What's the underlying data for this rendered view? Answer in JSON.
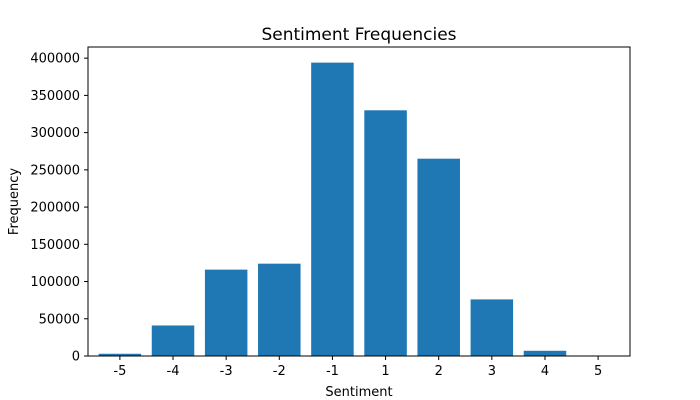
{
  "chart_data": {
    "type": "bar",
    "title": "Sentiment Frequencies",
    "xlabel": "Sentiment",
    "ylabel": "Frequency",
    "categories": [
      "-5",
      "-4",
      "-3",
      "-2",
      "-1",
      "1",
      "2",
      "3",
      "4",
      "5"
    ],
    "values": [
      3000,
      41000,
      116000,
      124000,
      394000,
      330000,
      265000,
      76000,
      7000,
      500
    ],
    "ylim": [
      0,
      415000
    ],
    "yticks": [
      "0",
      "50000",
      "100000",
      "150000",
      "200000",
      "250000",
      "300000",
      "350000",
      "400000"
    ],
    "bar_color": "#1f77b4",
    "grid": false,
    "legend": "none"
  }
}
